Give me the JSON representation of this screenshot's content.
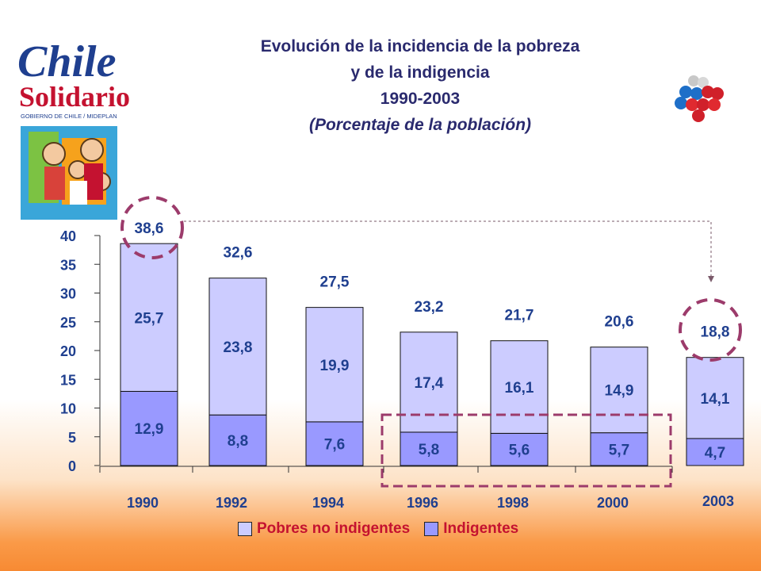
{
  "title": {
    "line1": "Evolución de la incidencia de la pobreza",
    "line2": "y de la indigencia",
    "line3": "1990-2003",
    "line4": "(Porcentaje de la población)"
  },
  "logo": {
    "text_chile": "Chile",
    "text_solidario": "Solidario",
    "subtext": "GOBIERNO DE CHILE / MIDEPLAN"
  },
  "colors": {
    "pobres_no_indigentes": "#ccccff",
    "indigentes": "#9999ff",
    "title": "#2a2a6e",
    "legend_text": "#c41230",
    "highlight_dash": "#9c3b6b"
  },
  "chart_data": {
    "type": "bar",
    "stacked": true,
    "categories": [
      "1990",
      "1992",
      "1994",
      "1996",
      "1998",
      "2000",
      "2003"
    ],
    "series": [
      {
        "name": "Indigentes",
        "values": [
          12.9,
          8.8,
          7.6,
          5.8,
          5.6,
          5.7,
          4.7
        ]
      },
      {
        "name": "Pobres no indigentes",
        "values": [
          25.7,
          23.8,
          19.9,
          17.4,
          16.1,
          14.9,
          14.1
        ]
      }
    ],
    "value_labels": {
      "Indigentes": [
        "12,9",
        "8,8",
        "7,6",
        "5,8",
        "5,6",
        "5,7",
        "4,7"
      ],
      "Pobres no indigentes": [
        "25,7",
        "23,8",
        "19,9",
        "17,4",
        "16,1",
        "14,9",
        "14,1"
      ]
    },
    "totals": [
      38.6,
      32.6,
      27.5,
      23.2,
      21.7,
      20.6,
      18.8
    ],
    "total_labels": [
      "38,6",
      "32,6",
      "27,5",
      "23,2",
      "21,7",
      "20,6",
      "18,8"
    ],
    "yticks": [
      "0",
      "5",
      "10",
      "15",
      "20",
      "25",
      "30",
      "35",
      "40"
    ],
    "ylim": [
      0,
      40
    ],
    "legend": [
      "Pobres no indigentes",
      "Indigentes"
    ],
    "legend_position": "bottom-center",
    "grid": false
  }
}
